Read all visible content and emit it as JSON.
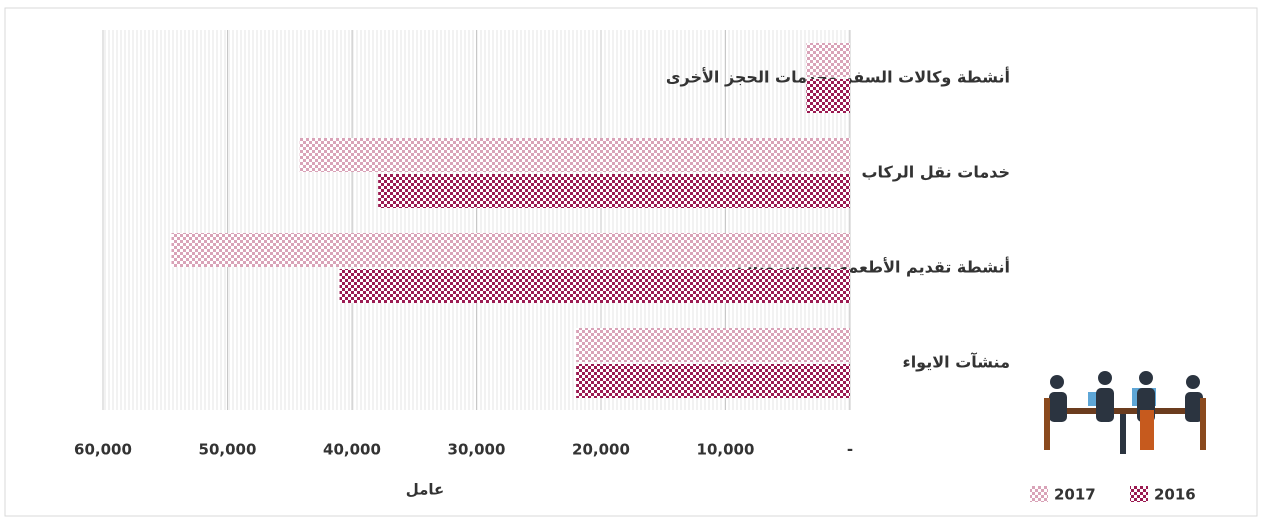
{
  "chart_data": {
    "type": "hbar",
    "categories": [
      "أنشطة وكالات السفر وخدمات الحجز الأخرى",
      "خدمات نقل الركاب",
      "أنشطة تقديم الأطعمة والمشروبات",
      "منشآت الايواء"
    ],
    "series": [
      {
        "name": "2016",
        "color": "#9b1b52",
        "values": [
          3500,
          37900,
          41000,
          22000
        ]
      },
      {
        "name": "2017",
        "color": "#d9a3b8",
        "values": [
          3500,
          44200,
          54500,
          22000
        ]
      }
    ],
    "xlabel": "عامل",
    "xlim": [
      0,
      60000
    ],
    "xticks": [
      {
        "value": 0,
        "label": "-"
      },
      {
        "value": 10000,
        "label": "10,000"
      },
      {
        "value": 20000,
        "label": "20,000"
      },
      {
        "value": 30000,
        "label": "30,000"
      },
      {
        "value": 40000,
        "label": "40,000"
      },
      {
        "value": 50000,
        "label": "50,000"
      },
      {
        "value": 60000,
        "label": "60,000"
      }
    ],
    "xreversed": true,
    "grid": true
  }
}
